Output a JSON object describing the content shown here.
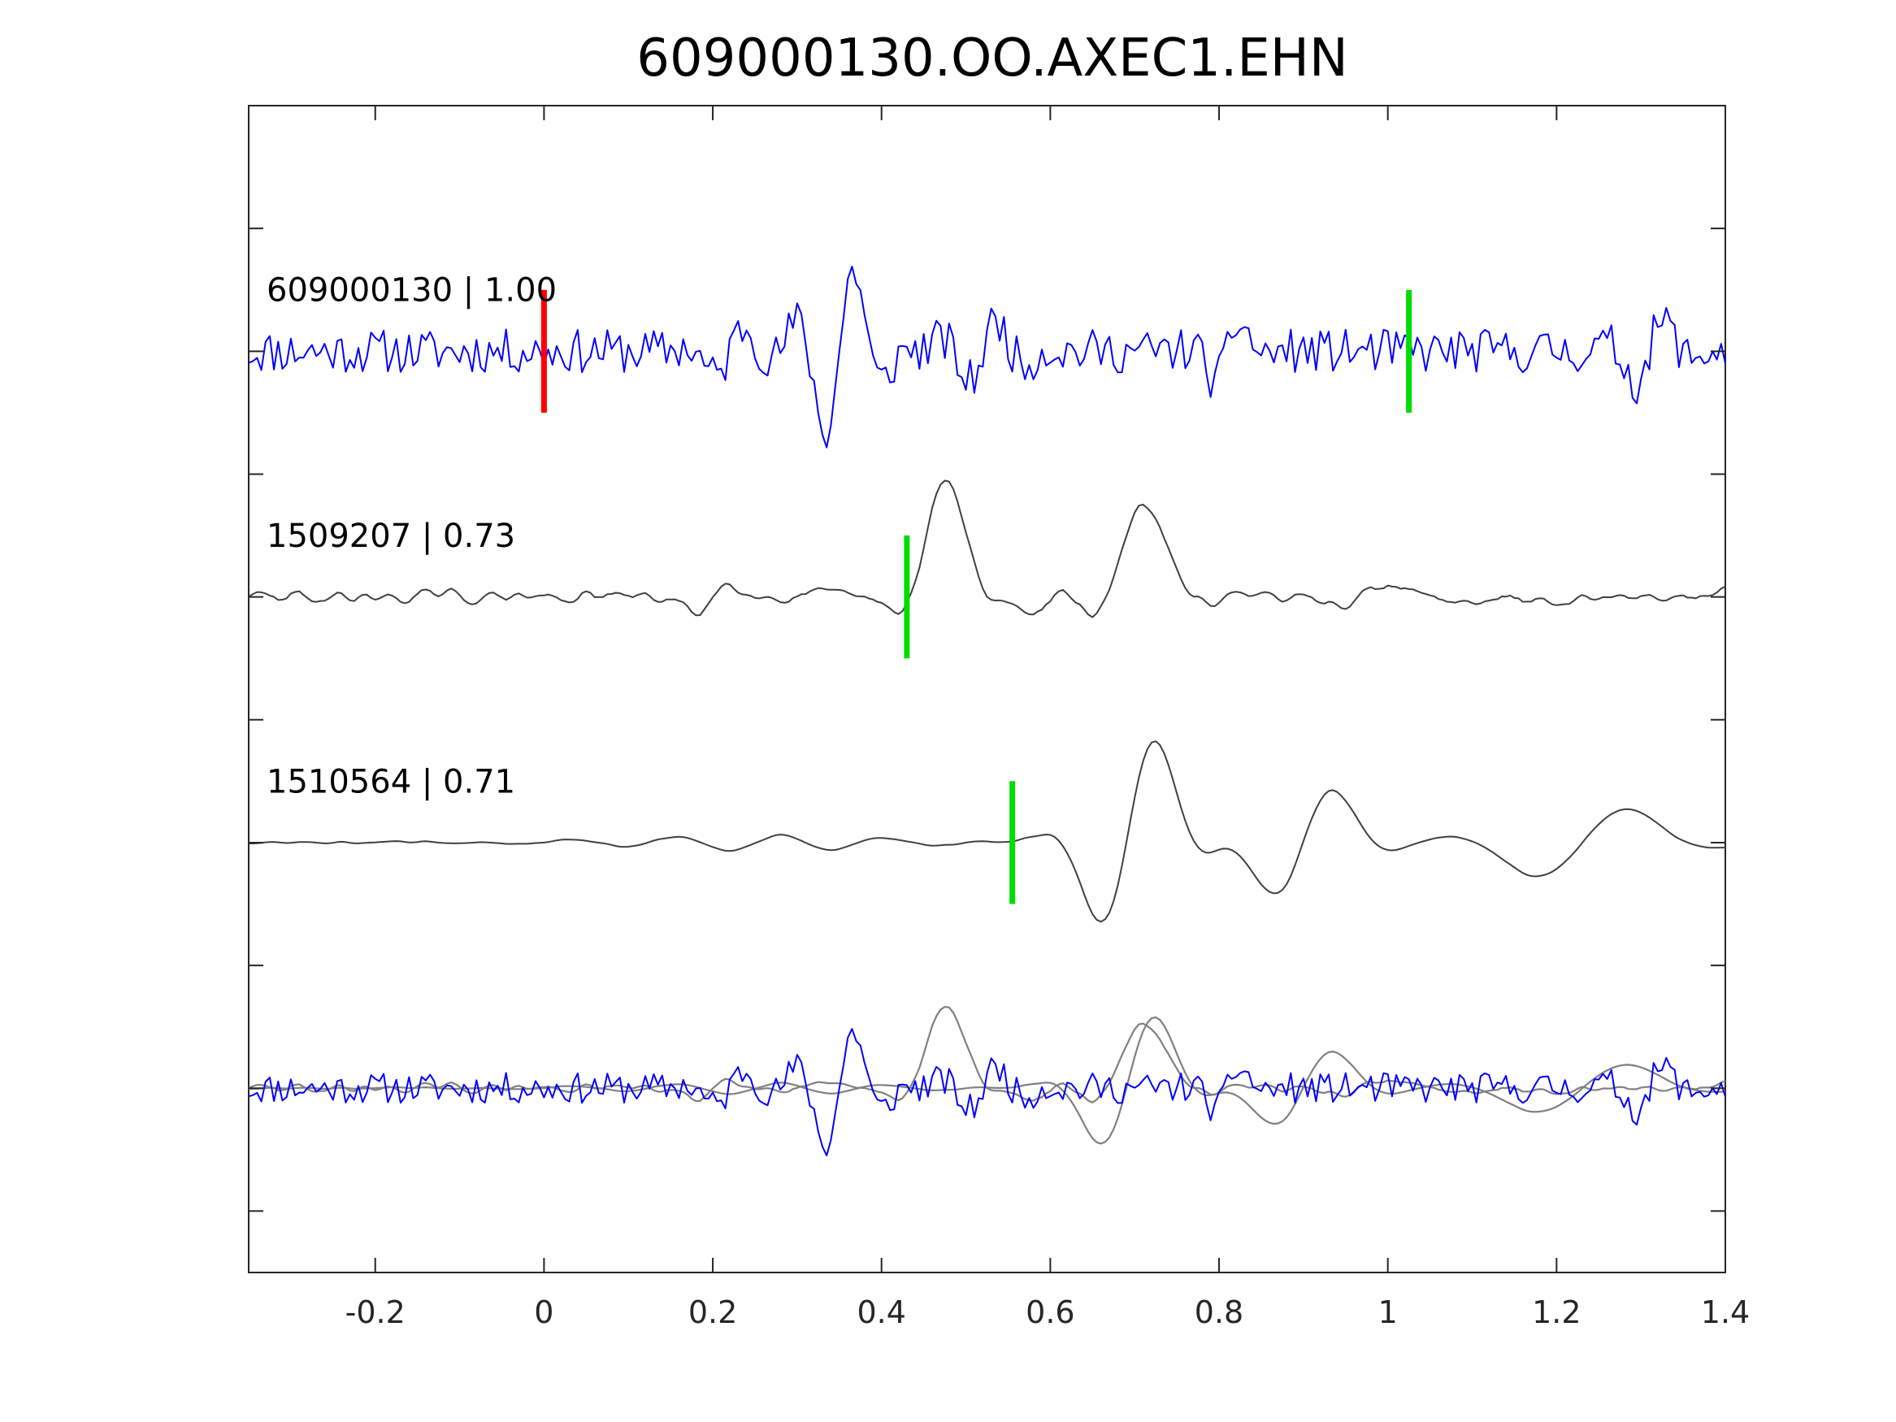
{
  "chart_data": {
    "type": "line",
    "title": "609000130.OO.AXEC1.EHN",
    "xlabel": "",
    "ylabel": "",
    "xlim": [
      -0.35,
      1.4
    ],
    "ylim": [
      -5.5,
      4
    ],
    "xticks": [
      -0.2,
      0,
      0.2,
      0.4,
      0.6,
      0.8,
      1,
      1.2,
      1.4
    ],
    "xtick_labels": [
      "-0.2",
      "0",
      "0.2",
      "0.4",
      "0.6",
      "0.8",
      "1",
      "1.2",
      "1.4"
    ],
    "yticks": [
      -5,
      -4,
      -3,
      -2,
      -1,
      0,
      1,
      2,
      3
    ],
    "grid": false,
    "legend": "none",
    "colors": {
      "reference": "#0000ff",
      "template": "#404040",
      "overlay_template": "#808080",
      "pick_red": "#ff0000",
      "pick_green": "#00dd00",
      "axis": "#262626"
    },
    "series": [
      {
        "name": "609000130 | 1.00",
        "label": "609000130 | 1.00",
        "color": "#0000ff",
        "baseline": 2,
        "amplitude": 1,
        "dt": 0.005,
        "x_start": -0.35,
        "noise_seed": 11,
        "noise_amp": 0.18,
        "waves": [
          {
            "x": 0.35,
            "w": 0.05,
            "f": 13.5,
            "a": 0.75
          },
          {
            "x": 0.81,
            "w": 0.03,
            "f": 14,
            "a": 0.32
          },
          {
            "x": 0.52,
            "w": 0.05,
            "f": 14,
            "a": 0.28
          },
          {
            "x": 1.31,
            "w": 0.04,
            "f": 13,
            "a": 0.3
          },
          {
            "x": 0.22,
            "w": 0.04,
            "f": 12,
            "a": 0.25
          }
        ],
        "picks": [
          {
            "x": 0.0,
            "color": "#ff0000"
          },
          {
            "x": 1.025,
            "color": "#00dd00"
          }
        ]
      },
      {
        "name": "1509207 | 0.73",
        "label": "1509207 | 0.73",
        "color": "#404040",
        "baseline": 0,
        "amplitude": 1,
        "dt": 0.005,
        "x_start": -0.35,
        "noise_seed": 29,
        "noise_amp": 0.1,
        "smooth": 2,
        "waves": [
          {
            "x": 0.47,
            "w": 0.045,
            "f": 5.5,
            "a": 1.0,
            "p": 1.2
          },
          {
            "x": 0.7,
            "w": 0.05,
            "f": 5,
            "a": 0.85,
            "p": 1.0
          },
          {
            "x": 0.6,
            "w": 0.03,
            "f": 6,
            "a": 0.25
          },
          {
            "x": 0.97,
            "w": 0.04,
            "f": 8,
            "a": 0.2
          },
          {
            "x": 0.2,
            "w": 0.04,
            "f": 8,
            "a": 0.2
          }
        ],
        "picks": [
          {
            "x": 0.43,
            "color": "#00dd00"
          }
        ]
      },
      {
        "name": "1510564 | 0.71",
        "label": "1510564 | 0.71",
        "color": "#404040",
        "baseline": -2,
        "amplitude": 1,
        "dt": 0.005,
        "x_start": -0.35,
        "noise_seed": 47,
        "noise_amp": 0.02,
        "smooth": 3,
        "waves": [
          {
            "x": 0.7,
            "w": 0.07,
            "f": 6.5,
            "a": 1.0,
            "p": 0.4
          },
          {
            "x": 0.9,
            "w": 0.08,
            "f": 6,
            "a": 0.55
          },
          {
            "x": 1.23,
            "w": 0.12,
            "f": 4,
            "a": 0.35
          },
          {
            "x": 0.25,
            "w": 0.2,
            "f": 8,
            "a": 0.07
          }
        ],
        "picks": [
          {
            "x": 0.555,
            "color": "#00dd00"
          }
        ]
      }
    ],
    "overlay": {
      "baseline": -4,
      "amplitude": 0.7,
      "description_label": "",
      "includes": [
        0,
        1,
        2
      ]
    }
  }
}
